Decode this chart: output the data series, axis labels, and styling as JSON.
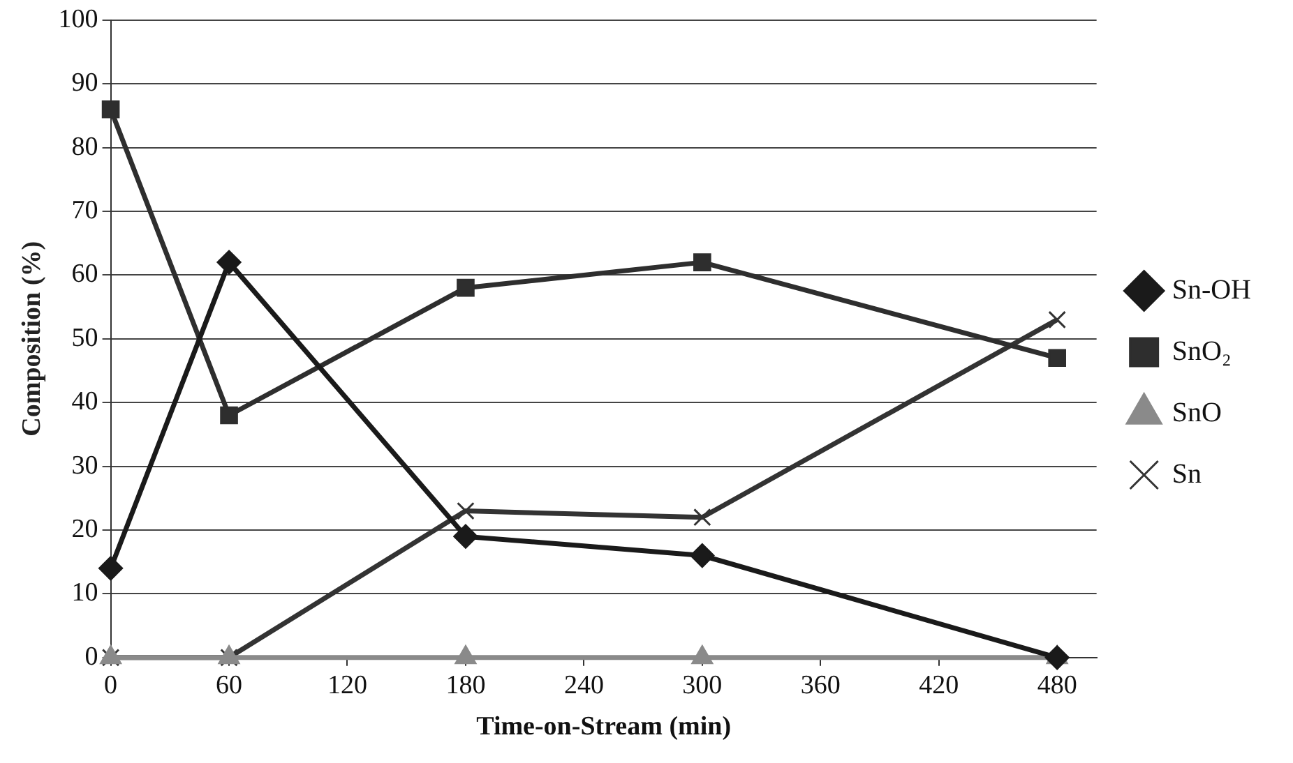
{
  "chart_data": {
    "type": "line",
    "xlabel": "Time-on-Stream (min)",
    "ylabel": "Composition (%)",
    "x": [
      0,
      60,
      180,
      300,
      480
    ],
    "xlim": [
      0,
      500
    ],
    "xticks": [
      0,
      60,
      120,
      180,
      240,
      300,
      360,
      420,
      480
    ],
    "ylim": [
      0,
      100
    ],
    "yticks": [
      0,
      10,
      20,
      30,
      40,
      50,
      60,
      70,
      80,
      90,
      100
    ],
    "grid": "y",
    "legend": "right",
    "line_style": "solid",
    "series": [
      {
        "name": "Sn-OH",
        "color": "#1a1a1a",
        "marker": "diamond",
        "values": [
          14,
          62,
          19,
          16,
          0
        ]
      },
      {
        "name": "SnO₂",
        "color": "#2e2e2e",
        "marker": "square",
        "values": [
          86,
          38,
          58,
          62,
          47
        ]
      },
      {
        "name": "SnO",
        "color": "#8a8a8a",
        "marker": "triangle",
        "values": [
          0,
          0,
          0,
          0,
          0
        ]
      },
      {
        "name": "Sn",
        "color": "#333333",
        "marker": "cross",
        "values": [
          0,
          0,
          23,
          22,
          53
        ]
      }
    ]
  }
}
